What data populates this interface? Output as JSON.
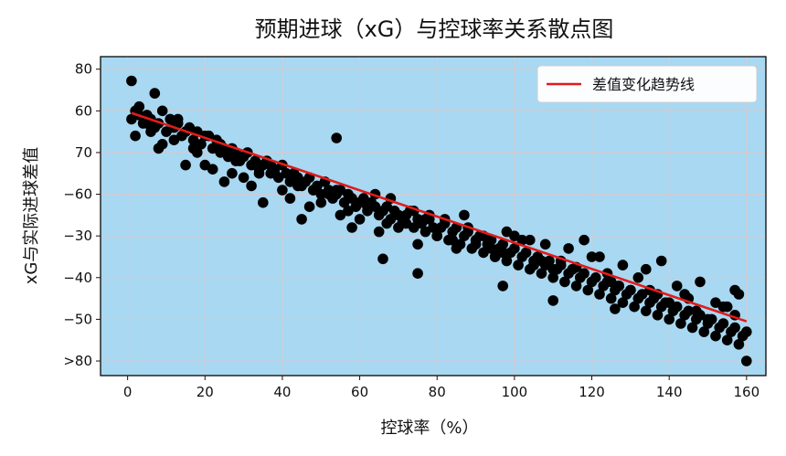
{
  "chart_data": {
    "type": "scatter",
    "title": "预期进球（xG）与控球率关系散点图",
    "xlabel": "控球率（%）",
    "ylabel": "xG与实际进球差值",
    "xlim": [
      -7,
      165
    ],
    "x_ticks": [
      0,
      20,
      40,
      60,
      80,
      100,
      120,
      140,
      160
    ],
    "y_tick_labels": [
      "80",
      "60",
      "70",
      "−60",
      "−30",
      "−40",
      "−50",
      ">80"
    ],
    "y_axis_note": "y values below are expressed in plotted tick-slot units: 0 = top tick ('80'), 7 = bottom tick ('>80')",
    "ylim_slots": [
      -0.3,
      7.35
    ],
    "grid": true,
    "legend": {
      "position": "top-right",
      "entries": [
        "差值变化趋势线"
      ]
    },
    "colors": {
      "plot_bg": "#a8d8f2",
      "points": "#000000",
      "trend": "#e21b1b",
      "grid": "#d9c9cc"
    },
    "trend_line": {
      "x": [
        1,
        160
      ],
      "y_slot": [
        1.05,
        6.05
      ]
    },
    "series": [
      {
        "x": [
          1,
          2,
          3,
          4,
          5,
          6,
          7,
          8,
          9,
          10,
          11,
          12,
          13,
          14,
          15,
          16,
          17,
          18,
          19,
          20,
          21,
          22,
          23,
          24,
          25,
          26,
          27,
          28,
          29,
          30,
          31,
          32,
          33,
          34,
          35,
          36,
          37,
          38,
          39,
          40,
          41,
          42,
          43,
          44,
          45,
          46,
          47,
          48,
          49,
          50,
          51,
          52,
          53,
          54,
          55,
          56,
          57,
          58,
          59,
          60,
          61,
          62,
          63,
          64,
          65,
          66,
          67,
          68,
          69,
          70,
          71,
          72,
          73,
          74,
          75,
          76,
          77,
          78,
          79,
          80,
          81,
          82,
          83,
          84,
          85,
          86,
          87,
          88,
          89,
          90,
          91,
          92,
          93,
          94,
          95,
          96,
          97,
          98,
          99,
          100,
          101,
          102,
          103,
          104,
          105,
          106,
          107,
          108,
          109,
          110,
          111,
          112,
          113,
          114,
          115,
          116,
          117,
          118,
          119,
          120,
          121,
          122,
          123,
          124,
          125,
          126,
          127,
          128,
          129,
          130,
          131,
          132,
          133,
          134,
          135,
          136,
          137,
          138,
          139,
          140,
          141,
          142,
          143,
          144,
          145,
          146,
          147,
          148,
          149,
          150,
          151,
          152,
          153,
          154,
          155,
          156,
          157,
          158,
          159,
          160,
          2,
          5,
          8,
          12,
          15,
          18,
          22,
          25,
          28,
          32,
          35,
          38,
          42,
          45,
          48,
          52,
          55,
          58,
          62,
          65,
          68,
          72,
          75,
          78,
          82,
          85,
          88,
          92,
          95,
          98,
          102,
          105,
          108,
          112,
          115,
          118,
          122,
          125,
          128,
          132,
          135,
          138,
          142,
          145,
          148,
          152,
          155,
          158,
          3,
          6,
          9,
          13,
          17,
          20,
          24,
          27,
          30,
          34,
          37,
          40,
          44,
          47,
          50,
          54,
          57,
          60,
          64,
          67,
          70,
          74,
          77,
          80,
          84,
          87,
          90,
          94,
          97,
          100,
          104,
          107,
          110,
          114,
          117,
          120,
          124,
          127,
          130,
          134,
          137,
          140,
          144,
          147,
          150,
          154,
          157,
          1,
          7,
          54,
          66,
          75,
          97,
          110,
          116,
          126,
          157,
          160
        ],
        "y_slot": [
          1.2,
          1.0,
          1.1,
          1.3,
          1.1,
          1.2,
          1.4,
          1.3,
          1.0,
          1.5,
          1.2,
          1.4,
          1.3,
          1.6,
          1.5,
          1.4,
          1.7,
          1.5,
          1.8,
          1.6,
          1.6,
          1.9,
          1.7,
          1.8,
          1.9,
          2.1,
          1.9,
          2.0,
          2.2,
          2.1,
          2.0,
          2.3,
          2.2,
          2.4,
          2.3,
          2.2,
          2.5,
          2.4,
          2.6,
          2.3,
          2.5,
          2.7,
          2.5,
          2.6,
          2.8,
          2.7,
          2.6,
          2.9,
          2.8,
          3.0,
          2.7,
          2.9,
          3.1,
          3.0,
          2.9,
          3.2,
          3.0,
          3.1,
          3.3,
          3.2,
          3.1,
          3.4,
          3.2,
          3.3,
          3.5,
          3.4,
          3.3,
          3.6,
          3.4,
          3.5,
          3.7,
          3.5,
          3.4,
          3.8,
          3.6,
          3.7,
          3.9,
          3.6,
          3.8,
          4.0,
          3.8,
          3.7,
          4.1,
          3.9,
          3.8,
          4.2,
          4.0,
          3.9,
          4.3,
          4.1,
          4.0,
          4.4,
          4.2,
          4.1,
          4.5,
          4.3,
          4.2,
          4.6,
          4.4,
          4.3,
          4.7,
          4.5,
          4.4,
          4.8,
          4.6,
          4.5,
          4.9,
          4.7,
          4.6,
          5.0,
          4.8,
          4.7,
          5.1,
          4.9,
          4.8,
          5.2,
          5.0,
          4.9,
          5.3,
          5.1,
          5.0,
          5.4,
          5.2,
          5.1,
          5.5,
          5.3,
          5.2,
          5.6,
          5.4,
          5.3,
          5.7,
          5.5,
          5.4,
          5.8,
          5.6,
          5.5,
          5.9,
          5.7,
          5.6,
          6.0,
          5.8,
          5.7,
          6.1,
          5.9,
          5.8,
          6.2,
          6.0,
          5.9,
          6.3,
          6.1,
          6.0,
          6.4,
          6.2,
          6.1,
          6.5,
          6.3,
          6.2,
          6.6,
          6.4,
          6.3,
          1.6,
          1.3,
          1.9,
          1.7,
          2.3,
          2.0,
          2.4,
          2.7,
          2.2,
          2.8,
          3.2,
          2.5,
          3.1,
          3.6,
          2.9,
          3.0,
          3.5,
          3.8,
          3.3,
          3.9,
          3.1,
          3.7,
          4.2,
          3.5,
          3.6,
          4.3,
          3.8,
          4.0,
          4.5,
          3.9,
          4.1,
          4.7,
          4.2,
          4.6,
          4.8,
          4.1,
          4.5,
          5.1,
          4.7,
          5.0,
          5.3,
          4.6,
          5.2,
          5.5,
          5.1,
          5.6,
          5.7,
          5.4,
          0.9,
          1.5,
          1.8,
          1.2,
          1.9,
          2.3,
          2.0,
          2.5,
          2.6,
          2.5,
          2.3,
          2.9,
          2.8,
          3.3,
          3.2,
          2.9,
          3.4,
          3.6,
          3.0,
          3.7,
          3.8,
          3.4,
          3.6,
          4.0,
          4.1,
          3.5,
          4.2,
          4.3,
          4.4,
          4.0,
          4.1,
          4.6,
          4.8,
          4.3,
          5.0,
          4.5,
          4.9,
          5.2,
          5.3,
          4.8,
          5.4,
          5.6,
          5.4,
          5.8,
          6.0,
          5.7,
          5.3,
          0.28,
          0.58,
          1.65,
          4.55,
          4.9,
          5.2,
          5.55,
          4.75,
          5.75,
          5.9,
          7.0
        ]
      }
    ]
  }
}
